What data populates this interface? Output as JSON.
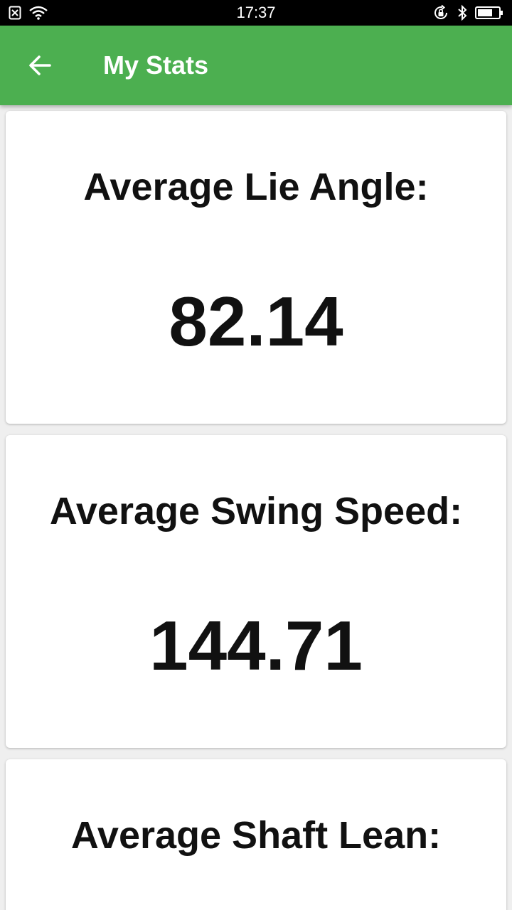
{
  "status_bar": {
    "time": "17:37",
    "left_icons": [
      "no-sim-icon",
      "wifi-icon"
    ],
    "right_icons": [
      "rotation-lock-icon",
      "bluetooth-icon",
      "battery-icon"
    ]
  },
  "app_bar": {
    "title": "My Stats",
    "back_icon": "arrow-left-icon",
    "color": "#4caf50"
  },
  "stats": [
    {
      "label": "Average Lie Angle:",
      "value": "82.14"
    },
    {
      "label": "Average Swing Speed:",
      "value": "144.71"
    },
    {
      "label": "Average Shaft Lean:",
      "value": ""
    }
  ]
}
